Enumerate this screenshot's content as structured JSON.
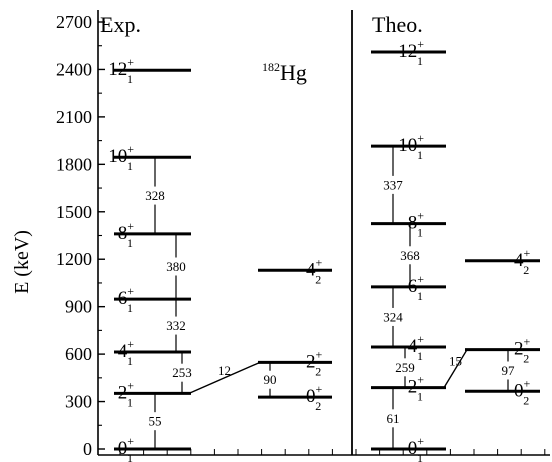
{
  "y_axis": {
    "title": "E (keV)",
    "min": 0,
    "max": 2700,
    "ticks": [
      0,
      300,
      600,
      900,
      1200,
      1500,
      1800,
      2100,
      2400,
      2700
    ]
  },
  "nucleus": {
    "mass": "182",
    "symbol": "Hg"
  },
  "panels": {
    "exp": {
      "label": "Exp.",
      "levels": [
        {
          "spin": "0",
          "parity": "+",
          "index": "1",
          "energy": 0,
          "column": "left"
        },
        {
          "spin": "2",
          "parity": "+",
          "index": "1",
          "energy": 352,
          "column": "left"
        },
        {
          "spin": "4",
          "parity": "+",
          "index": "1",
          "energy": 613,
          "column": "left"
        },
        {
          "spin": "6",
          "parity": "+",
          "index": "1",
          "energy": 948,
          "column": "left"
        },
        {
          "spin": "8",
          "parity": "+",
          "index": "1",
          "energy": 1360,
          "column": "left"
        },
        {
          "spin": "10",
          "parity": "+",
          "index": "1",
          "energy": 1845,
          "column": "left"
        },
        {
          "spin": "12",
          "parity": "+",
          "index": "1",
          "energy": 2395,
          "column": "left"
        },
        {
          "spin": "0",
          "parity": "+",
          "index": "2",
          "energy": 328,
          "column": "right"
        },
        {
          "spin": "2",
          "parity": "+",
          "index": "2",
          "energy": 548,
          "column": "right"
        },
        {
          "spin": "4",
          "parity": "+",
          "index": "2",
          "energy": 1130,
          "column": "right"
        }
      ],
      "transitions": [
        {
          "from": 1,
          "to": 0,
          "label": "55"
        },
        {
          "from": 2,
          "to": 1,
          "label": "253"
        },
        {
          "from": 3,
          "to": 2,
          "label": "332"
        },
        {
          "from": 4,
          "to": 3,
          "label": "380"
        },
        {
          "from": 5,
          "to": 4,
          "label": "328"
        },
        {
          "from": 8,
          "to": 7,
          "label": "90"
        },
        {
          "from": 8,
          "to": 1,
          "label": "12"
        }
      ]
    },
    "theo": {
      "label": "Theo.",
      "levels": [
        {
          "spin": "0",
          "parity": "+",
          "index": "1",
          "energy": 0,
          "column": "left"
        },
        {
          "spin": "2",
          "parity": "+",
          "index": "1",
          "energy": 388,
          "column": "left"
        },
        {
          "spin": "4",
          "parity": "+",
          "index": "1",
          "energy": 645,
          "column": "left"
        },
        {
          "spin": "6",
          "parity": "+",
          "index": "1",
          "energy": 1025,
          "column": "left"
        },
        {
          "spin": "8",
          "parity": "+",
          "index": "1",
          "energy": 1425,
          "column": "left"
        },
        {
          "spin": "10",
          "parity": "+",
          "index": "1",
          "energy": 1915,
          "column": "left"
        },
        {
          "spin": "12",
          "parity": "+",
          "index": "1",
          "energy": 2510,
          "column": "left"
        },
        {
          "spin": "0",
          "parity": "+",
          "index": "2",
          "energy": 365,
          "column": "right"
        },
        {
          "spin": "2",
          "parity": "+",
          "index": "2",
          "energy": 628,
          "column": "right"
        },
        {
          "spin": "4",
          "parity": "+",
          "index": "2",
          "energy": 1190,
          "column": "right"
        }
      ],
      "transitions": [
        {
          "from": 1,
          "to": 0,
          "label": "61"
        },
        {
          "from": 2,
          "to": 1,
          "label": "259"
        },
        {
          "from": 3,
          "to": 2,
          "label": "324"
        },
        {
          "from": 4,
          "to": 3,
          "label": "368"
        },
        {
          "from": 5,
          "to": 4,
          "label": "337"
        },
        {
          "from": 8,
          "to": 7,
          "label": "97"
        },
        {
          "from": 8,
          "to": 1,
          "label": "15"
        }
      ]
    }
  }
}
